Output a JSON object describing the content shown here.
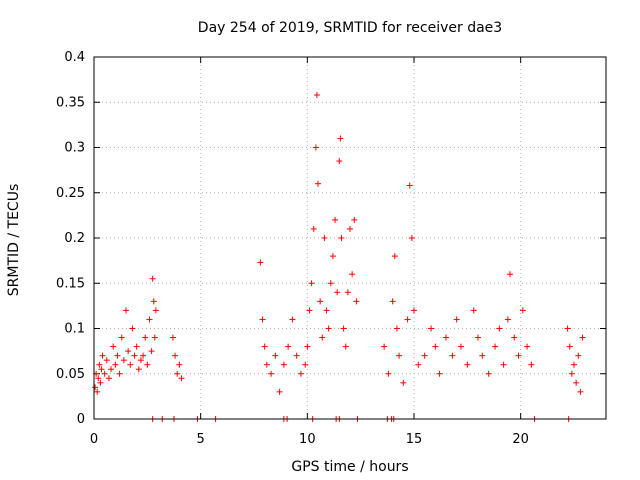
{
  "chart_data": {
    "type": "scatter",
    "title": "Day 254 of 2019, SRMTID for receiver dae3",
    "xlabel": "GPS time / hours",
    "ylabel": "SRMTID / TECUs",
    "xlim": [
      0,
      24
    ],
    "ylim": [
      0,
      0.4
    ],
    "xticks": [
      0,
      5,
      10,
      15,
      20
    ],
    "xtick_labels": [
      "0",
      "5",
      "10",
      "15",
      "20"
    ],
    "yticks": [
      0,
      0.05,
      0.1,
      0.15,
      0.2,
      0.25,
      0.3,
      0.35,
      0.4
    ],
    "ytick_labels": [
      "0",
      "0.05",
      "0.1",
      "0.15",
      "0.2",
      "0.25",
      "0.3",
      "0.35",
      "0.4"
    ],
    "grid": true,
    "marker": "plus",
    "series": [
      {
        "name": "dae3",
        "color": "#ff0000",
        "x": [
          0.05,
          0.1,
          0.15,
          0.2,
          0.25,
          0.3,
          0.35,
          0.4,
          0.5,
          0.6,
          0.7,
          0.8,
          0.9,
          1.0,
          1.1,
          1.2,
          1.3,
          1.4,
          1.5,
          1.6,
          1.7,
          1.8,
          1.9,
          2.0,
          2.1,
          2.2,
          2.3,
          2.4,
          2.5,
          2.6,
          2.7,
          2.75,
          2.8,
          2.85,
          2.9,
          3.7,
          3.8,
          3.9,
          4.0,
          4.1,
          7.8,
          7.9,
          8.0,
          8.1,
          8.3,
          8.5,
          8.7,
          8.9,
          9.1,
          9.3,
          9.5,
          9.7,
          9.9,
          10.0,
          10.1,
          10.2,
          10.3,
          10.4,
          10.45,
          10.5,
          10.6,
          10.7,
          10.8,
          10.9,
          11.0,
          11.1,
          11.2,
          11.3,
          11.4,
          11.5,
          11.55,
          11.6,
          11.7,
          11.8,
          11.9,
          12.0,
          12.1,
          12.2,
          12.3,
          13.6,
          13.8,
          14.0,
          14.1,
          14.2,
          14.3,
          14.5,
          14.7,
          14.8,
          14.9,
          15.0,
          15.2,
          15.5,
          15.8,
          16.0,
          16.2,
          16.5,
          16.8,
          17.0,
          17.2,
          17.5,
          17.8,
          18.0,
          18.2,
          18.5,
          18.8,
          19.0,
          19.2,
          19.4,
          19.5,
          19.7,
          19.9,
          20.1,
          20.3,
          20.5,
          22.2,
          22.3,
          22.4,
          22.5,
          22.6,
          22.7,
          22.8,
          22.9,
          2.75,
          3.2,
          3.75,
          4.85,
          5.7,
          8.9,
          9.05,
          10.25,
          11.35,
          11.5,
          12.35,
          13.75,
          13.95,
          14.05,
          20.65,
          22.25
        ],
        "y": [
          0.035,
          0.05,
          0.03,
          0.045,
          0.06,
          0.04,
          0.055,
          0.07,
          0.05,
          0.065,
          0.045,
          0.055,
          0.08,
          0.06,
          0.07,
          0.05,
          0.09,
          0.065,
          0.12,
          0.075,
          0.06,
          0.1,
          0.07,
          0.08,
          0.055,
          0.065,
          0.07,
          0.09,
          0.06,
          0.11,
          0.075,
          0.155,
          0.13,
          0.09,
          0.12,
          0.09,
          0.07,
          0.05,
          0.06,
          0.045,
          0.173,
          0.11,
          0.08,
          0.06,
          0.05,
          0.07,
          0.03,
          0.06,
          0.08,
          0.11,
          0.07,
          0.05,
          0.06,
          0.08,
          0.12,
          0.15,
          0.21,
          0.3,
          0.358,
          0.26,
          0.13,
          0.09,
          0.2,
          0.12,
          0.1,
          0.15,
          0.18,
          0.22,
          0.14,
          0.285,
          0.31,
          0.2,
          0.1,
          0.08,
          0.14,
          0.21,
          0.16,
          0.22,
          0.13,
          0.08,
          0.05,
          0.13,
          0.18,
          0.1,
          0.07,
          0.04,
          0.11,
          0.258,
          0.2,
          0.12,
          0.06,
          0.07,
          0.1,
          0.08,
          0.05,
          0.09,
          0.07,
          0.11,
          0.08,
          0.06,
          0.12,
          0.09,
          0.07,
          0.05,
          0.08,
          0.1,
          0.06,
          0.11,
          0.16,
          0.09,
          0.07,
          0.12,
          0.08,
          0.06,
          0.1,
          0.08,
          0.05,
          0.06,
          0.04,
          0.07,
          0.03,
          0.09,
          0,
          0,
          0,
          0,
          0,
          0,
          0,
          0,
          0,
          0,
          0,
          0,
          0,
          0,
          0,
          0
        ]
      }
    ]
  }
}
